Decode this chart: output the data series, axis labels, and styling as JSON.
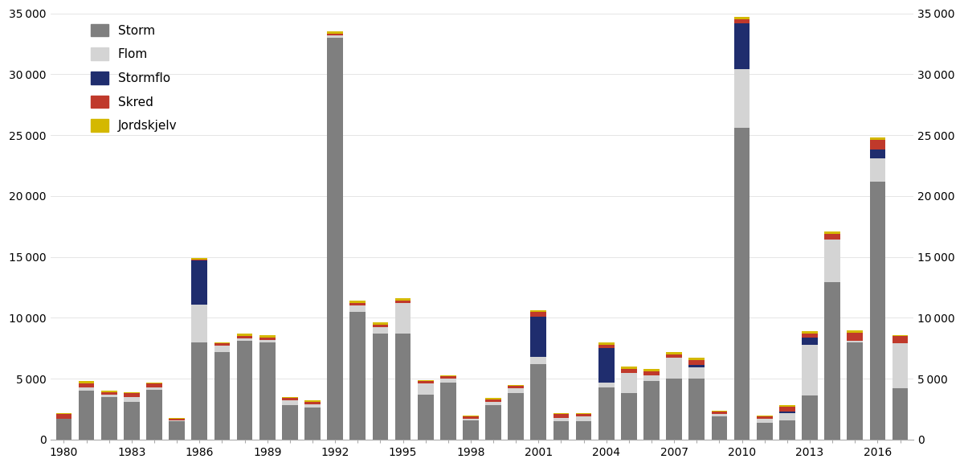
{
  "years": [
    1980,
    1981,
    1982,
    1983,
    1984,
    1985,
    1986,
    1987,
    1988,
    1989,
    1990,
    1991,
    1992,
    1993,
    1994,
    1995,
    1996,
    1997,
    1998,
    1999,
    2000,
    2001,
    2002,
    2003,
    2004,
    2005,
    2006,
    2007,
    2008,
    2009,
    2010,
    2011,
    2012,
    2013,
    2014,
    2015,
    2016,
    2017
  ],
  "storm": [
    1700,
    4000,
    3500,
    3100,
    4100,
    1500,
    8000,
    7200,
    8100,
    8000,
    2800,
    2600,
    33000,
    10500,
    8700,
    8700,
    3700,
    4700,
    1600,
    2800,
    3800,
    6200,
    1500,
    1500,
    4300,
    3800,
    4800,
    5000,
    5000,
    1900,
    25600,
    1400,
    1600,
    3600,
    12900,
    8000,
    21200,
    4200
  ],
  "flom": [
    0,
    300,
    200,
    400,
    200,
    100,
    3100,
    500,
    200,
    200,
    400,
    300,
    200,
    500,
    500,
    2500,
    900,
    300,
    100,
    300,
    400,
    600,
    300,
    400,
    400,
    1700,
    500,
    1700,
    900,
    200,
    4800,
    300,
    600,
    4200,
    3500,
    100,
    1900,
    3700
  ],
  "stormflo": [
    0,
    0,
    0,
    0,
    0,
    0,
    3600,
    0,
    0,
    0,
    0,
    0,
    0,
    0,
    0,
    0,
    0,
    0,
    0,
    0,
    0,
    3300,
    0,
    0,
    2800,
    0,
    0,
    0,
    200,
    0,
    3800,
    0,
    100,
    600,
    0,
    0,
    700,
    0
  ],
  "skred": [
    400,
    300,
    200,
    300,
    300,
    100,
    100,
    200,
    200,
    200,
    200,
    200,
    100,
    200,
    200,
    200,
    200,
    200,
    200,
    200,
    200,
    400,
    300,
    200,
    300,
    300,
    300,
    300,
    400,
    200,
    300,
    200,
    400,
    300,
    500,
    700,
    800,
    600
  ],
  "jordskjelv": [
    100,
    200,
    100,
    100,
    100,
    100,
    100,
    100,
    200,
    200,
    100,
    100,
    200,
    200,
    200,
    200,
    100,
    100,
    100,
    100,
    100,
    100,
    100,
    100,
    200,
    200,
    200,
    200,
    200,
    100,
    200,
    100,
    100,
    200,
    200,
    200,
    200,
    100
  ],
  "colors": {
    "storm": "#7f7f7f",
    "flom": "#d4d4d4",
    "stormflo": "#1f2d6e",
    "skred": "#c0392b",
    "jordskjelv": "#d4b800"
  },
  "ylim": [
    0,
    35000
  ],
  "yticks": [
    0,
    5000,
    10000,
    15000,
    20000,
    25000,
    30000,
    35000
  ],
  "background_color": "#ffffff"
}
